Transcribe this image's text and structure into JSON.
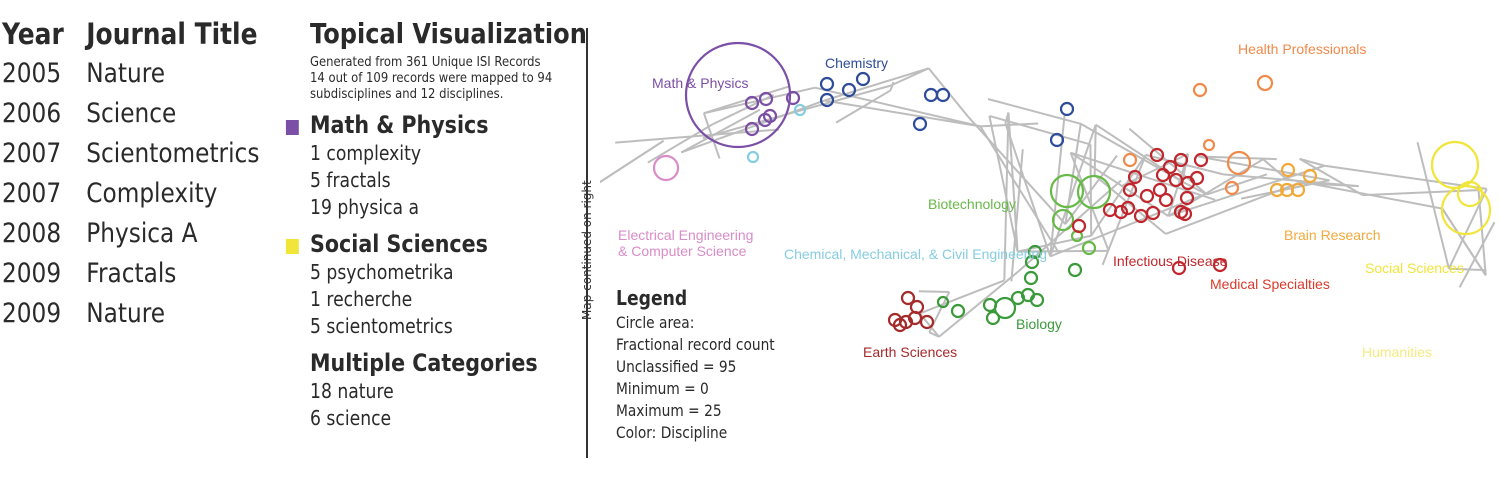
{
  "journal_table": {
    "headers": {
      "year": "Year",
      "title": "Journal Title"
    },
    "rows": [
      {
        "year": "2005",
        "title": "Nature"
      },
      {
        "year": "2006",
        "title": "Science"
      },
      {
        "year": "2007",
        "title": "Scientometrics"
      },
      {
        "year": "2007",
        "title": "Complexity"
      },
      {
        "year": "2008",
        "title": "Physica A"
      },
      {
        "year": "2009",
        "title": "Fractals"
      },
      {
        "year": "2009",
        "title": "Nature"
      }
    ]
  },
  "topical": {
    "title": "Topical Visualization",
    "subtitle_lines": [
      "Generated from 361 Unique ISI Records",
      "14 out of 109 records were mapped to 94",
      "subdisciplines and 12 disciplines."
    ],
    "categories": [
      {
        "name": "Math & Physics",
        "color": "#7b4fa6",
        "items": [
          "1 complexity",
          "5 fractals",
          "19 physica a"
        ]
      },
      {
        "name": "Social Sciences",
        "color": "#f2e53a",
        "items": [
          "5 psychometrika",
          "1 recherche",
          "5 scientometrics"
        ]
      },
      {
        "name": "Multiple Categories",
        "color": "",
        "items": [
          "18 nature",
          "6 science"
        ]
      }
    ]
  },
  "divider_label": "Map continued on right",
  "legend": {
    "title": "Legend",
    "lines": [
      "Circle area:",
      "Fractional record count",
      "Unclassified = 95",
      "Minimum = 0",
      "Maximum = 25",
      "Color: Discipline"
    ]
  },
  "map": {
    "labels": {
      "math_physics": "Math & Physics",
      "chemistry": "Chemistry",
      "health_professionals": "Health Professionals",
      "electrical_1": "Electrical Engineering",
      "electrical_2": "& Computer Science",
      "biotechnology": "Biotechnology",
      "chemical": "Chemical, Mechanical, & Civil Engineering",
      "infectious": "Infectious Disease",
      "brain": "Brain Research",
      "social": "Social Sciences",
      "medical": "Medical Specialties",
      "biology": "Biology",
      "earth": "Earth Sciences",
      "humanities": "Humanities"
    },
    "colors": {
      "math_physics": "#7b4fa6",
      "chemistry": "#2f4c9a",
      "health_professionals": "#f08a4b",
      "electrical": "#d98cc8",
      "biotechnology": "#67b948",
      "chemical": "#86cde0",
      "infectious": "#c0272d",
      "medical": "#d93a2b",
      "brain": "#f2a93b",
      "social": "#f2e53a",
      "biology": "#3a9a3a",
      "earth": "#a52a2a",
      "humanities": "#f5ea80",
      "network": "#bdbdbd"
    }
  }
}
